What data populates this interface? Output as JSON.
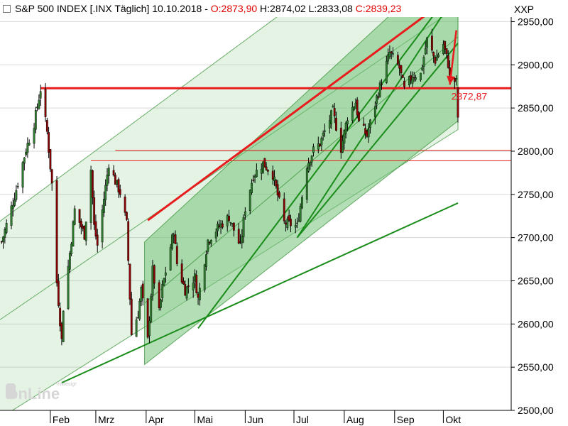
{
  "header": {
    "title": "S&P 500 INDEX [.INX  Täglich] 10.10.2018 -",
    "open": "O:2873,90",
    "high": "H:2874,02",
    "low": "L:2833,08",
    "close": "C:2839,23"
  },
  "symbol": "XXP",
  "watermark": "Tradesignal online",
  "colors": {
    "channel_fill": "#77c27a",
    "channel_line": "#2e8b2e",
    "trend_green": "#1a8c1a",
    "resistance_red": "#e81c1c",
    "candle_up": "#2e7d2e",
    "candle_down": "#8b0000",
    "annotation_red": "#e81c1c",
    "grid": "#d9d9d9"
  },
  "chart_data": {
    "type": "candlestick",
    "title": "S&P 500 INDEX [.INX  Täglich] 10.10.2018",
    "y_axis": {
      "min": 2500,
      "max": 2975,
      "position": "right",
      "ticks": [
        2500,
        2550,
        2600,
        2650,
        2700,
        2750,
        2800,
        2850,
        2900,
        2950
      ],
      "tick_labels": [
        "2500,00",
        "2550,00",
        "2600,00",
        "2650,00",
        "2700,00",
        "2750,00",
        "2800,00",
        "2850,00",
        "2900,00",
        "2950,00"
      ]
    },
    "x_axis": {
      "labels": [
        "Feb",
        "Mrz",
        "Apr",
        "Mai",
        "Jun",
        "Jul",
        "Aug",
        "Sep",
        "Okt"
      ],
      "start": "2018-01-01",
      "end": "2018-10-10"
    },
    "close_path": [
      [
        "2018-01-02",
        2695
      ],
      [
        "2018-01-10",
        2748
      ],
      [
        "2018-01-17",
        2802
      ],
      [
        "2018-01-22",
        2832
      ],
      [
        "2018-01-26",
        2872
      ],
      [
        "2018-01-30",
        2822
      ],
      [
        "2018-02-02",
        2762
      ],
      [
        "2018-02-05",
        2648
      ],
      [
        "2018-02-08",
        2581
      ],
      [
        "2018-02-09",
        2619
      ],
      [
        "2018-02-14",
        2698
      ],
      [
        "2018-02-16",
        2732
      ],
      [
        "2018-02-22",
        2703
      ],
      [
        "2018-02-26",
        2779
      ],
      [
        "2018-02-28",
        2713
      ],
      [
        "2018-03-02",
        2691
      ],
      [
        "2018-03-09",
        2786
      ],
      [
        "2018-03-13",
        2765
      ],
      [
        "2018-03-16",
        2752
      ],
      [
        "2018-03-20",
        2716
      ],
      [
        "2018-03-23",
        2588
      ],
      [
        "2018-03-27",
        2612
      ],
      [
        "2018-03-29",
        2640
      ],
      [
        "2018-04-02",
        2581
      ],
      [
        "2018-04-05",
        2662
      ],
      [
        "2018-04-09",
        2613
      ],
      [
        "2018-04-11",
        2642
      ],
      [
        "2018-04-18",
        2708
      ],
      [
        "2018-04-20",
        2670
      ],
      [
        "2018-04-25",
        2639
      ],
      [
        "2018-05-01",
        2654
      ],
      [
        "2018-05-03",
        2629
      ],
      [
        "2018-05-09",
        2697
      ],
      [
        "2018-05-15",
        2711
      ],
      [
        "2018-05-22",
        2724
      ],
      [
        "2018-05-29",
        2689
      ],
      [
        "2018-06-01",
        2734
      ],
      [
        "2018-06-06",
        2772
      ],
      [
        "2018-06-12",
        2786
      ],
      [
        "2018-06-18",
        2773
      ],
      [
        "2018-06-25",
        2717
      ],
      [
        "2018-06-28",
        2716
      ],
      [
        "2018-07-03",
        2713
      ],
      [
        "2018-07-09",
        2784
      ],
      [
        "2018-07-13",
        2801
      ],
      [
        "2018-07-17",
        2809
      ],
      [
        "2018-07-25",
        2846
      ],
      [
        "2018-07-30",
        2803
      ],
      [
        "2018-08-03",
        2840
      ],
      [
        "2018-08-08",
        2857
      ],
      [
        "2018-08-10",
        2833
      ],
      [
        "2018-08-15",
        2818
      ],
      [
        "2018-08-21",
        2862
      ],
      [
        "2018-08-29",
        2914
      ],
      [
        "2018-09-04",
        2896
      ],
      [
        "2018-09-07",
        2871
      ],
      [
        "2018-09-12",
        2888
      ],
      [
        "2018-09-17",
        2889
      ],
      [
        "2018-09-21",
        2929
      ],
      [
        "2018-09-26",
        2905
      ],
      [
        "2018-10-01",
        2924
      ],
      [
        "2018-10-04",
        2901
      ],
      [
        "2018-10-05",
        2885
      ],
      [
        "2018-10-09",
        2880
      ],
      [
        "2018-10-10",
        2839
      ]
    ],
    "last_bar": {
      "date": "2018-10-10",
      "open": 2873.9,
      "high": 2874.02,
      "low": 2833.08,
      "close": 2839.23
    },
    "horizontal_lines": [
      {
        "value": 2872.87,
        "label": "2872,87",
        "color": "#e81c1c",
        "width": "thick",
        "from": "2018-01-26"
      },
      {
        "value": 2801,
        "color": "#e81c1c",
        "width": "thin",
        "from": "2018-03-13"
      },
      {
        "value": 2789,
        "color": "#e81c1c",
        "width": "thin",
        "from": "2018-02-26"
      }
    ],
    "resistance_line": {
      "color": "#e81c1c",
      "from": [
        "2018-04-02",
        2720
      ],
      "to": [
        "2018-10-10",
        2985
      ]
    },
    "trend_lines": [
      {
        "from": [
          "2018-02-08",
          2532
        ],
        "to": [
          "2018-10-10",
          2740
        ]
      },
      {
        "from": [
          "2018-05-03",
          2595
        ],
        "to": [
          "2018-10-10",
          2995
        ]
      },
      {
        "from": [
          "2018-07-03",
          2700
        ],
        "to": [
          "2018-10-10",
          2985
        ]
      },
      {
        "from": [
          "2018-07-03",
          2700
        ],
        "to": [
          "2018-10-10",
          2925
        ]
      }
    ],
    "channels": [
      {
        "fill": true,
        "opacity": 0.55,
        "upper": [
          [
            "2018-03-31",
            2695
          ],
          [
            "2018-10-10",
            3030
          ]
        ],
        "lower": [
          [
            "2018-03-31",
            2553
          ],
          [
            "2018-10-10",
            2835
          ]
        ]
      },
      {
        "fill": true,
        "opacity": 0.2,
        "upper": [
          [
            "2017-12-27",
            2712
          ],
          [
            "2018-10-10",
            3110
          ]
        ],
        "lower": [
          [
            "2017-12-27",
            2485
          ],
          [
            "2018-10-10",
            2825
          ]
        ]
      }
    ],
    "annotation": {
      "label": "2872,87",
      "arrow_from": [
        "2018-10-09",
        2940
      ],
      "arrow_to": [
        "2018-10-05",
        2877
      ]
    }
  }
}
